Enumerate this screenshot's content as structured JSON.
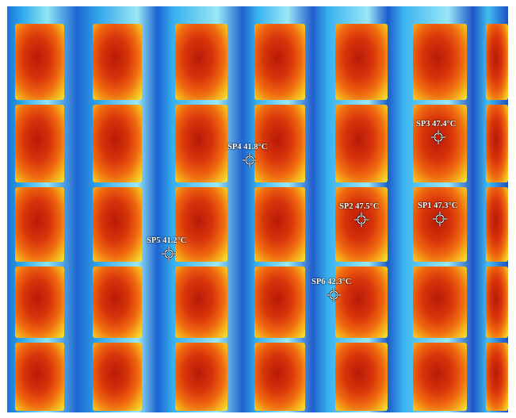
{
  "spots": [
    {
      "label": "SP1 47.3°C"
    },
    {
      "label": "SP2 47.5°C"
    },
    {
      "label": "SP3 47.4°C"
    },
    {
      "label": "SP4 41.8°C"
    },
    {
      "label": "SP5 41.2°C"
    },
    {
      "label": "SP6 42.3°C"
    }
  ]
}
